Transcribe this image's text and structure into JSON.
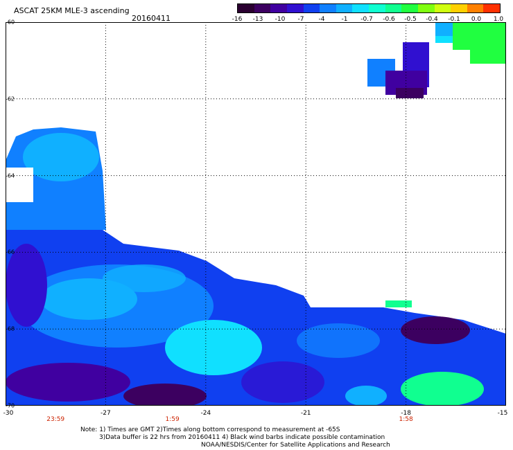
{
  "title": "ASCAT 25KM MLE-3 ascending",
  "date": "20160411",
  "colorbar": {
    "colors": [
      "#2a0030",
      "#3c0060",
      "#4000a0",
      "#3010d0",
      "#1040f0",
      "#1080ff",
      "#10b0ff",
      "#10e0ff",
      "#10ffd0",
      "#10ff90",
      "#20ff40",
      "#80ff10",
      "#d0ff10",
      "#ffd000",
      "#ff8000",
      "#ff3000"
    ],
    "labels": [
      "-16",
      "-13",
      "-10",
      "-7",
      "-4",
      "-1",
      "-0.7",
      "-0.6",
      "-0.5",
      "-0.4",
      "-0.1",
      "0.0",
      "1.0"
    ]
  },
  "map": {
    "lon_range": [
      -30,
      -15
    ],
    "lat_range": [
      -60,
      -70
    ],
    "lat_labels": [
      "-60",
      "-62",
      "-64",
      "-66",
      "-68",
      "-70"
    ],
    "lon_labels": [
      "-30",
      "-27",
      "-24",
      "-21",
      "-18",
      "-15"
    ],
    "time_labels": [
      {
        "lon": -28.5,
        "text": "23:59"
      },
      {
        "lon": -25,
        "text": "1:59"
      },
      {
        "lon": -18,
        "text": "1:58"
      }
    ]
  },
  "notes": {
    "line1": "Note: 1) Times are GMT 2)Times along bottom correspond to measurement at -65S",
    "line2": "3)Data buffer is 22 hrs from 20160411 4) Black wind barbs indicate possible contamination",
    "line3": "NOAA/NESDIS/Center for Satellite Applications and Research"
  }
}
